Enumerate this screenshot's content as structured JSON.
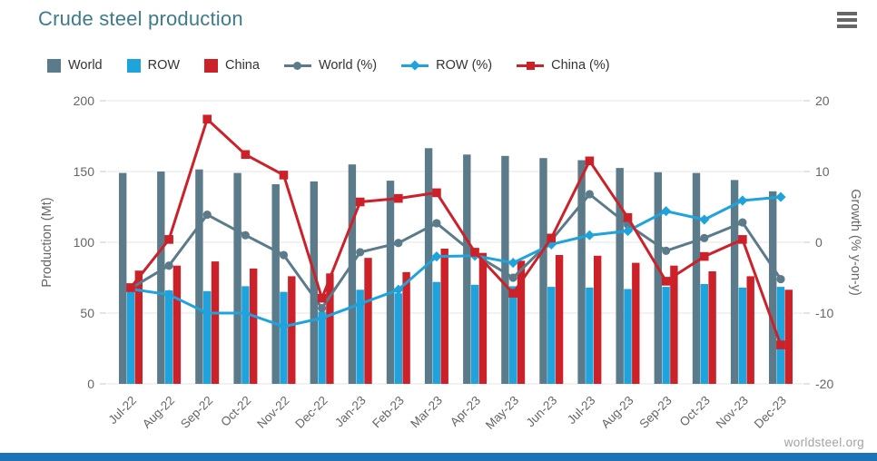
{
  "header": {
    "title": "Crude steel production",
    "menu_icon": "hamburger-icon"
  },
  "colors": {
    "world": "#5c7b8a",
    "row": "#1fa3dd",
    "china": "#cd2129",
    "title": "#3e7b8c",
    "grid": "#e6e6e6",
    "axis_text": "#666666",
    "bottom_bar": "#1c73b8",
    "watermark_text": "#a3a3a3"
  },
  "legend": [
    {
      "label": "World",
      "type": "bar",
      "color": "#5c7b8a"
    },
    {
      "label": "ROW",
      "type": "bar",
      "color": "#1fa3dd"
    },
    {
      "label": "China",
      "type": "bar",
      "color": "#cd2129"
    },
    {
      "label": "World (%)",
      "type": "line",
      "marker": "circle",
      "color": "#5c7b8a"
    },
    {
      "label": "ROW (%)",
      "type": "line",
      "marker": "diamond",
      "color": "#1fa3dd"
    },
    {
      "label": "China (%)",
      "type": "line",
      "marker": "square",
      "color": "#cd2129"
    }
  ],
  "chart_data": {
    "type": "bar+line combo, dual axis",
    "categories": [
      "Jul-22",
      "Aug-22",
      "Sep-22",
      "Oct-22",
      "Nov-22",
      "Dec-22",
      "Jan-23",
      "Feb-23",
      "Mar-23",
      "Apr-23",
      "May-23",
      "Jun-23",
      "Jul-23",
      "Aug-23",
      "Sep-23",
      "Oct-23",
      "Nov-23",
      "Dec-23"
    ],
    "series": [
      {
        "name": "World",
        "type": "bar",
        "axis": "left",
        "color": "#5c7b8a",
        "values": [
          149,
          150,
          151.5,
          149,
          141,
          143,
          155,
          143.5,
          166.5,
          162,
          161,
          159.5,
          158,
          152.5,
          149.5,
          149,
          144,
          136
        ]
      },
      {
        "name": "ROW",
        "type": "bar",
        "axis": "left",
        "color": "#1fa3dd",
        "values": [
          67.5,
          66,
          65.5,
          69,
          65,
          51,
          66.5,
          64,
          72,
          70,
          69,
          68.5,
          68,
          67,
          68.5,
          70.5,
          68,
          68.5
        ]
      },
      {
        "name": "China",
        "type": "bar",
        "axis": "left",
        "color": "#cd2129",
        "values": [
          80,
          83.5,
          86.5,
          81.5,
          76,
          78,
          89,
          79,
          95.5,
          92.5,
          87,
          91,
          90.5,
          85.5,
          83.5,
          79.5,
          76,
          66.5
        ]
      },
      {
        "name": "World (%)",
        "type": "line",
        "marker": "circle",
        "axis": "right",
        "color": "#5c7b8a",
        "values": [
          -6.5,
          -3.3,
          3.9,
          1.0,
          -1.8,
          -9.3,
          -1.4,
          -0.1,
          2.7,
          -1.7,
          -5.0,
          0.3,
          6.8,
          2.5,
          -1.2,
          0.6,
          2.8,
          -5.2
        ]
      },
      {
        "name": "ROW (%)",
        "type": "line",
        "marker": "diamond",
        "axis": "right",
        "color": "#1fa3dd",
        "values": [
          -6.6,
          -7.4,
          -10.0,
          -10.0,
          -11.9,
          -10.7,
          -8.7,
          -6.7,
          -2.0,
          -1.9,
          -2.9,
          -0.3,
          1.0,
          1.6,
          4.4,
          3.2,
          5.9,
          6.4
        ]
      },
      {
        "name": "China (%)",
        "type": "line",
        "marker": "square",
        "axis": "right",
        "color": "#cd2129",
        "values": [
          -6.4,
          0.4,
          17.4,
          12.4,
          9.5,
          -7.9,
          5.7,
          6.2,
          7.0,
          -1.4,
          -7.2,
          0.6,
          11.5,
          3.5,
          -5.5,
          -2.0,
          0.4,
          -14.5
        ]
      }
    ],
    "left_axis": {
      "label": "Production (Mt)",
      "min": 0,
      "max": 200,
      "ticks": [
        0,
        50,
        100,
        150,
        200
      ]
    },
    "right_axis": {
      "label": "Growth (% y-on-y)",
      "min": -20,
      "max": 20,
      "ticks": [
        -20,
        -10,
        0,
        10,
        20
      ]
    },
    "grid": true,
    "legend_position": "top"
  },
  "footer": {
    "watermark": "worldsteel.org"
  }
}
